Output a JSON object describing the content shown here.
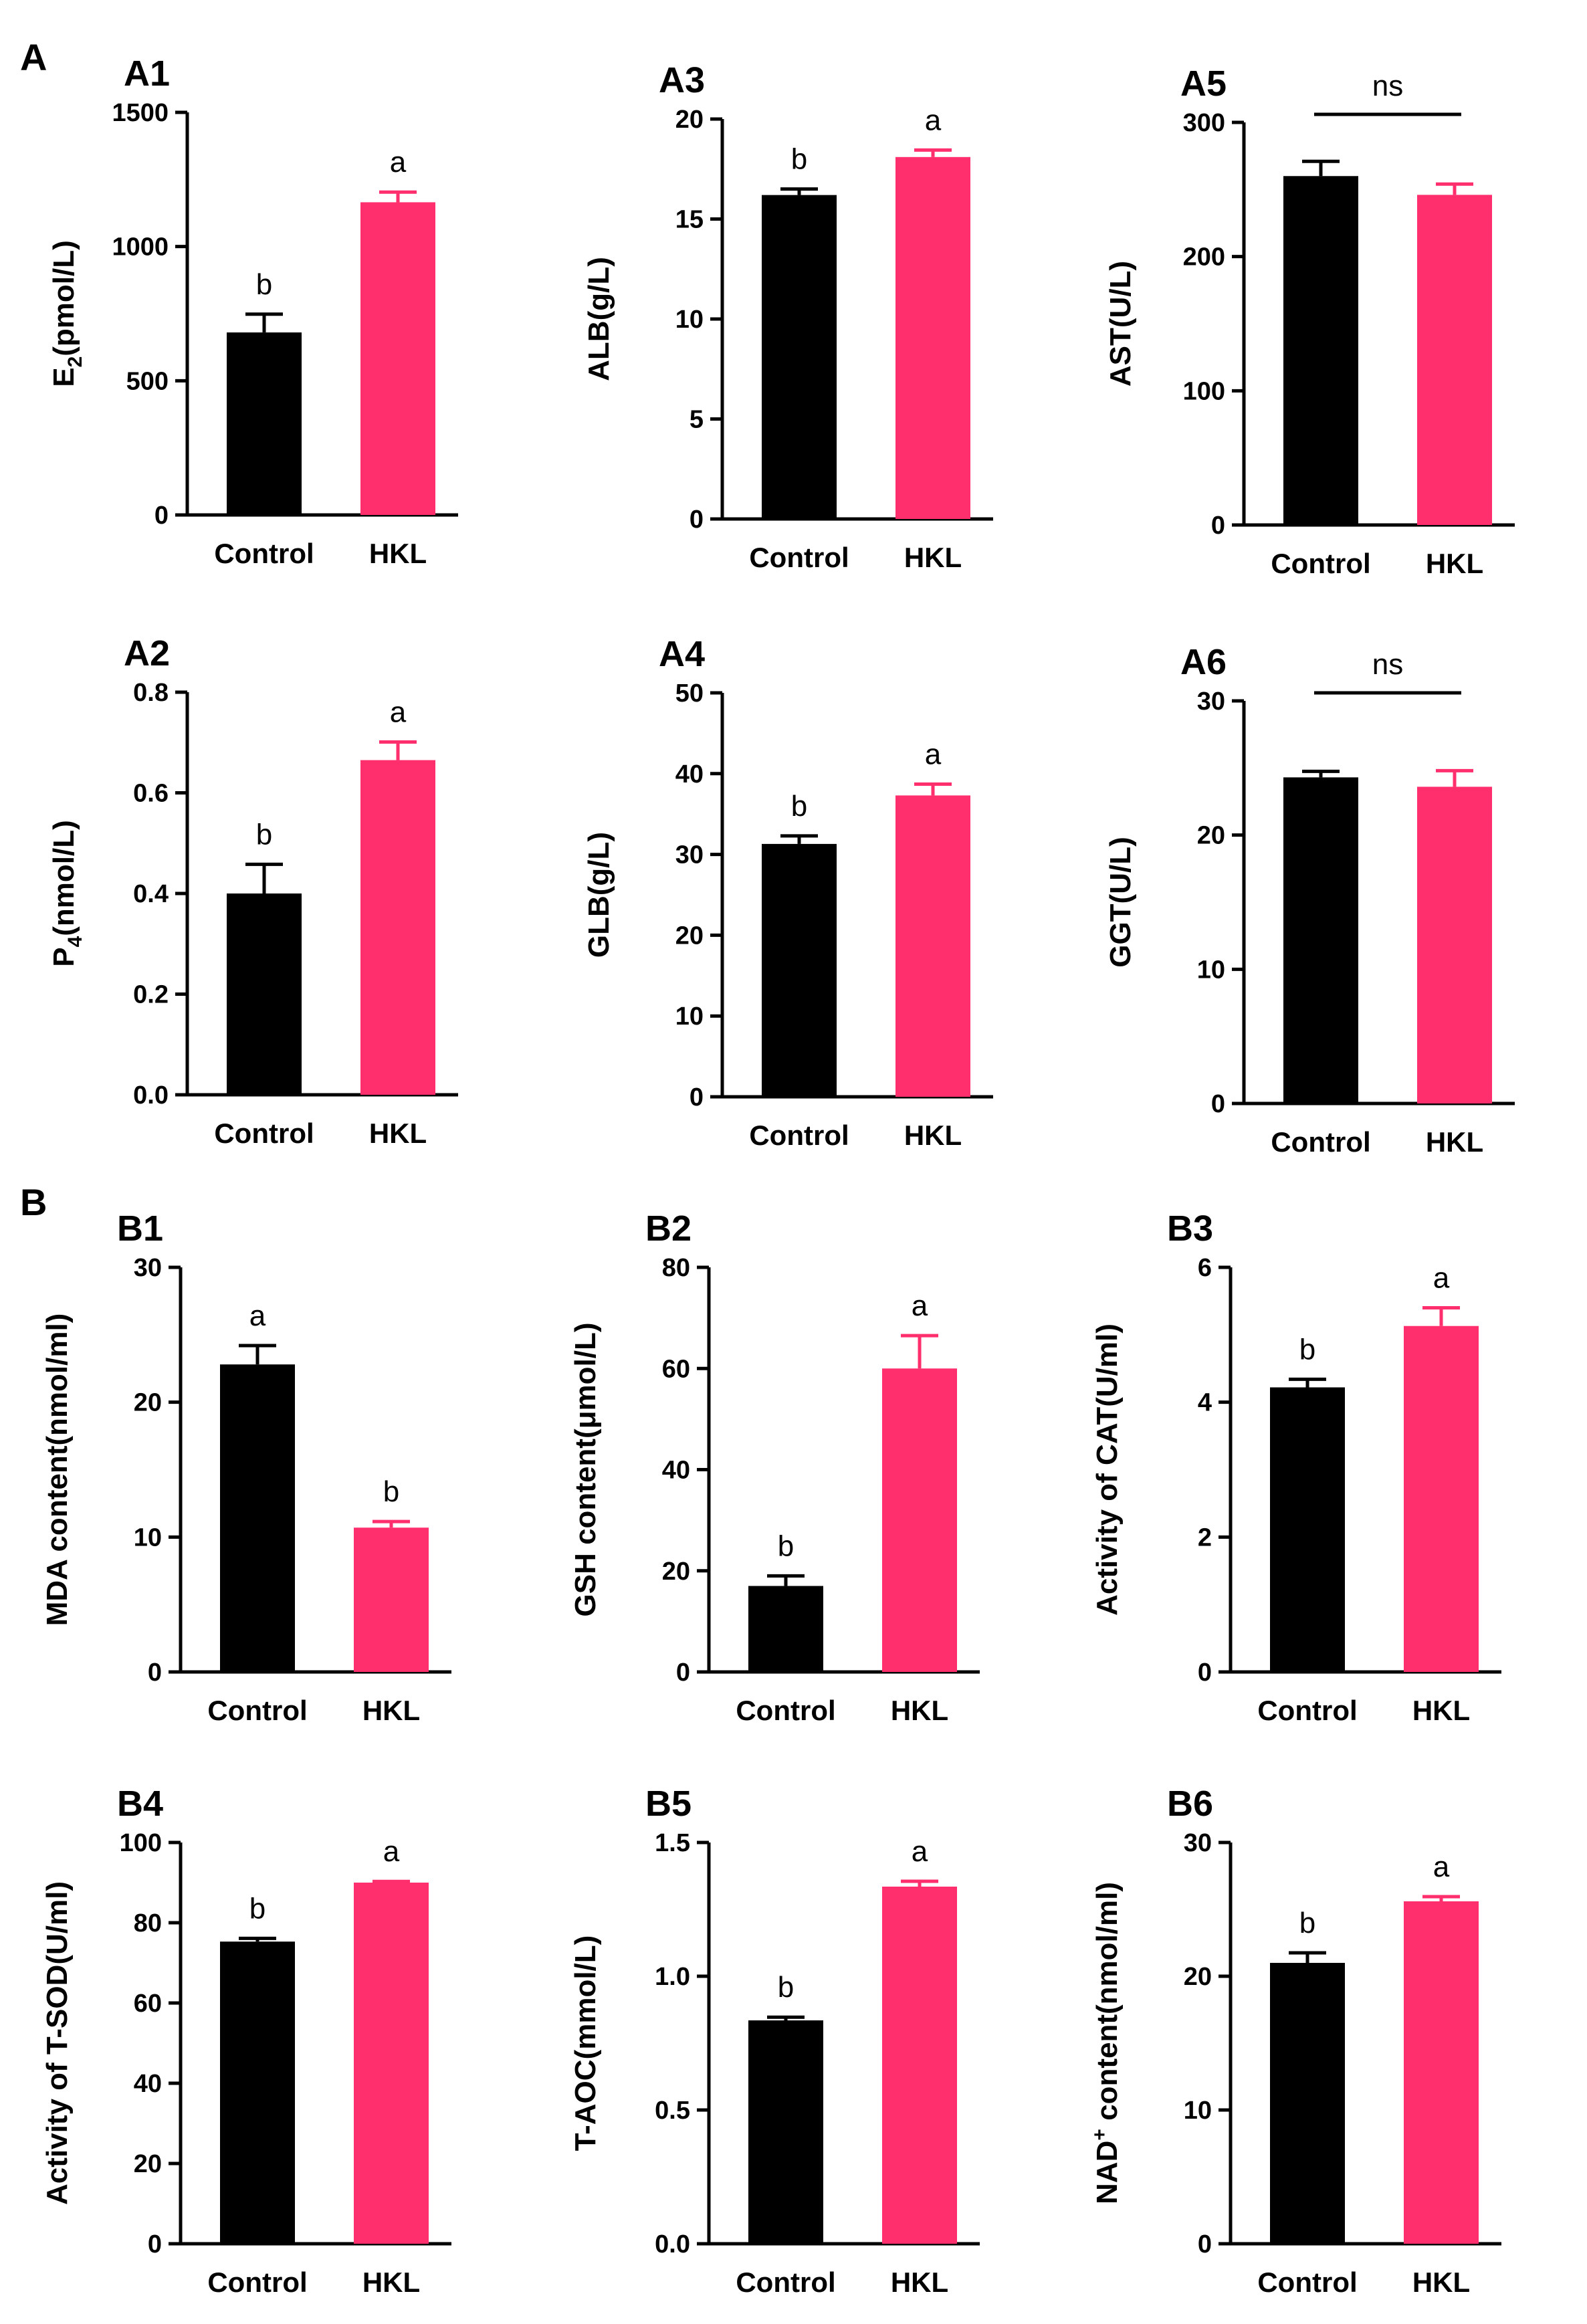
{
  "section_labels": [
    "A",
    "B"
  ],
  "colors": {
    "control": "#000000",
    "hkl": "#ff2e6d",
    "axis": "#000000"
  },
  "chart_data": [
    {
      "id": "A1",
      "type": "bar",
      "categories": [
        "Control",
        "HKL"
      ],
      "values": [
        680,
        1165
      ],
      "errors": [
        68,
        38
      ],
      "ylim": [
        0,
        1500
      ],
      "yticks": [
        0,
        500,
        1000,
        1500
      ],
      "ylabel_base": "E",
      "ylabel_sub": "2",
      "ylabel_rest": "(pmol/L)",
      "annotations": [
        "b",
        "a"
      ]
    },
    {
      "id": "A2",
      "type": "bar",
      "categories": [
        "Control",
        "HKL"
      ],
      "values": [
        0.4,
        0.665
      ],
      "errors": [
        0.058,
        0.036
      ],
      "ylim": [
        0,
        0.8
      ],
      "yticks": [
        0.0,
        0.2,
        0.4,
        0.6,
        0.8
      ],
      "ytick_labels": [
        "0.0",
        "0.2",
        "0.4",
        "0.6",
        "0.8"
      ],
      "ylabel_base": "P",
      "ylabel_sub": "4",
      "ylabel_rest": "(nmol/L)",
      "annotations": [
        "b",
        "a"
      ]
    },
    {
      "id": "A3",
      "type": "bar",
      "categories": [
        "Control",
        "HKL"
      ],
      "values": [
        16.2,
        18.1
      ],
      "errors": [
        0.3,
        0.35
      ],
      "ylim": [
        0,
        20
      ],
      "yticks": [
        0,
        5,
        10,
        15,
        20
      ],
      "ylabel": "ALB(g/L)",
      "annotations": [
        "b",
        "a"
      ]
    },
    {
      "id": "A4",
      "type": "bar",
      "categories": [
        "Control",
        "HKL"
      ],
      "values": [
        31.3,
        37.3
      ],
      "errors": [
        1.0,
        1.4
      ],
      "ylim": [
        0,
        50
      ],
      "yticks": [
        0,
        10,
        20,
        30,
        40,
        50
      ],
      "ylabel": "GLB(g/L)",
      "annotations": [
        "b",
        "a"
      ]
    },
    {
      "id": "A5",
      "type": "bar",
      "categories": [
        "Control",
        "HKL"
      ],
      "values": [
        260,
        246
      ],
      "errors": [
        11,
        8
      ],
      "ylim": [
        0,
        300
      ],
      "yticks": [
        0,
        100,
        200,
        300
      ],
      "ylabel": "AST(U/L)",
      "ns": "ns"
    },
    {
      "id": "A6",
      "type": "bar",
      "categories": [
        "Control",
        "HKL"
      ],
      "values": [
        24.3,
        23.6
      ],
      "errors": [
        0.45,
        1.2
      ],
      "ylim": [
        0,
        30
      ],
      "yticks": [
        0,
        10,
        20,
        30
      ],
      "ylabel": "GGT(U/L)",
      "ns": "ns"
    },
    {
      "id": "B1",
      "type": "bar",
      "categories": [
        "Control",
        "HKL"
      ],
      "values": [
        22.8,
        10.7
      ],
      "errors": [
        1.4,
        0.45
      ],
      "ylim": [
        0,
        30
      ],
      "yticks": [
        0,
        10,
        20,
        30
      ],
      "ylabel": "MDA content(nmol/ml)",
      "annotations": [
        "a",
        "b"
      ]
    },
    {
      "id": "B2",
      "type": "bar",
      "categories": [
        "Control",
        "HKL"
      ],
      "values": [
        17,
        60
      ],
      "errors": [
        2.0,
        6.5
      ],
      "ylim": [
        0,
        80
      ],
      "yticks": [
        0,
        20,
        40,
        60,
        80
      ],
      "ylabel": "GSH content(μmol/L)",
      "annotations": [
        "b",
        "a"
      ]
    },
    {
      "id": "B3",
      "type": "bar",
      "categories": [
        "Control",
        "HKL"
      ],
      "values": [
        4.22,
        5.13
      ],
      "errors": [
        0.12,
        0.27
      ],
      "ylim": [
        0,
        6
      ],
      "yticks": [
        0,
        2,
        4,
        6
      ],
      "ylabel": "Activity of CAT(U/ml)",
      "annotations": [
        "b",
        "a"
      ]
    },
    {
      "id": "B4",
      "type": "bar",
      "categories": [
        "Control",
        "HKL"
      ],
      "values": [
        75.3,
        90
      ],
      "errors": [
        0.8,
        0.3
      ],
      "ylim": [
        0,
        100
      ],
      "yticks": [
        0,
        20,
        40,
        60,
        80,
        100
      ],
      "ylabel": "Activity of T-SOD(U/ml)",
      "annotations": [
        "b",
        "a"
      ]
    },
    {
      "id": "B5",
      "type": "bar",
      "categories": [
        "Control",
        "HKL"
      ],
      "values": [
        0.835,
        1.335
      ],
      "errors": [
        0.012,
        0.02
      ],
      "ylim": [
        0,
        1.5
      ],
      "yticks": [
        0.0,
        0.5,
        1.0,
        1.5
      ],
      "ytick_labels": [
        "0.0",
        "0.5",
        "1.0",
        "1.5"
      ],
      "ylabel": "T-AOC(mmol/L)",
      "annotations": [
        "b",
        "a"
      ]
    },
    {
      "id": "B6",
      "type": "bar",
      "categories": [
        "Control",
        "HKL"
      ],
      "values": [
        21.0,
        25.6
      ],
      "errors": [
        0.75,
        0.35
      ],
      "ylim": [
        0,
        30
      ],
      "yticks": [
        0,
        10,
        20,
        30
      ],
      "ylabel_base": "NAD",
      "ylabel_sup": "+",
      "ylabel_rest": " content(nmol/ml)",
      "annotations": [
        "b",
        "a"
      ]
    }
  ]
}
